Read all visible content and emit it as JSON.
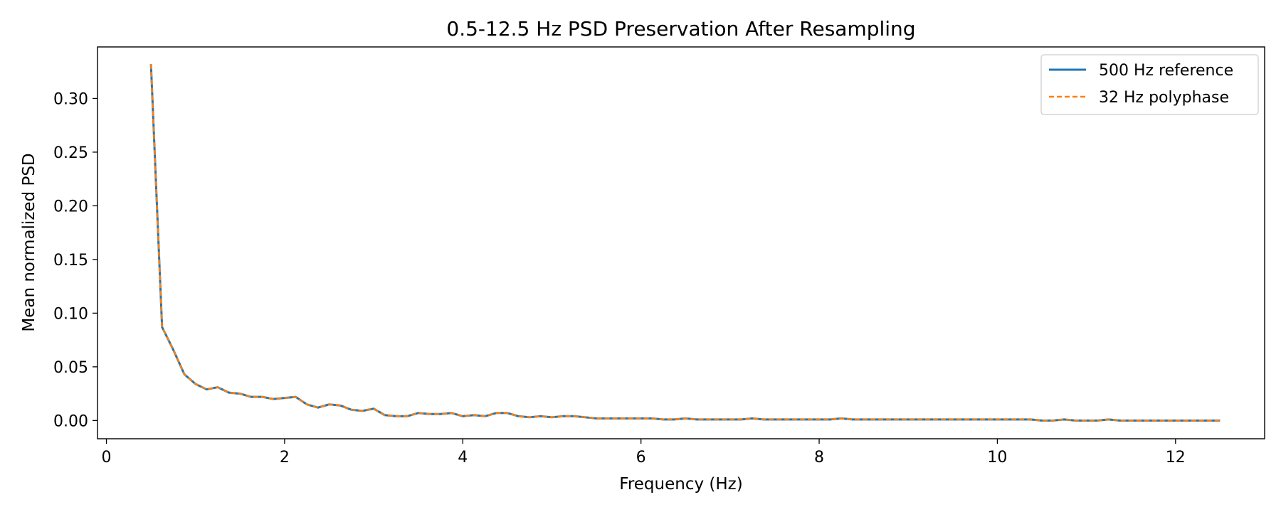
{
  "chart_data": {
    "type": "line",
    "title": "0.5-12.5 Hz PSD Preservation After Resampling",
    "xlabel": "Frequency (Hz)",
    "ylabel": "Mean normalized PSD",
    "xlim": [
      -0.1,
      13.0
    ],
    "ylim": [
      -0.017,
      0.348
    ],
    "xticks": [
      0,
      2,
      4,
      6,
      8,
      10,
      12
    ],
    "yticks": [
      0.0,
      0.05,
      0.1,
      0.15,
      0.2,
      0.25,
      0.3
    ],
    "xtick_labels": [
      "0",
      "2",
      "4",
      "6",
      "8",
      "10",
      "12"
    ],
    "ytick_labels": [
      "0.00",
      "0.05",
      "0.10",
      "0.15",
      "0.20",
      "0.25",
      "0.30"
    ],
    "grid": false,
    "legend_position": "top-right",
    "x": [
      0.5,
      0.625,
      0.75,
      0.875,
      1.0,
      1.125,
      1.25,
      1.375,
      1.5,
      1.625,
      1.75,
      1.875,
      2.0,
      2.125,
      2.25,
      2.375,
      2.5,
      2.625,
      2.75,
      2.875,
      3.0,
      3.125,
      3.25,
      3.375,
      3.5,
      3.625,
      3.75,
      3.875,
      4.0,
      4.125,
      4.25,
      4.375,
      4.5,
      4.625,
      4.75,
      4.875,
      5.0,
      5.125,
      5.25,
      5.375,
      5.5,
      5.625,
      5.75,
      5.875,
      6.0,
      6.125,
      6.25,
      6.375,
      6.5,
      6.625,
      6.75,
      6.875,
      7.0,
      7.125,
      7.25,
      7.375,
      7.5,
      7.625,
      7.75,
      7.875,
      8.0,
      8.125,
      8.25,
      8.375,
      8.5,
      8.625,
      8.75,
      8.875,
      9.0,
      9.125,
      9.25,
      9.375,
      9.5,
      9.625,
      9.75,
      9.875,
      10.0,
      10.125,
      10.25,
      10.375,
      10.5,
      10.625,
      10.75,
      10.875,
      11.0,
      11.125,
      11.25,
      11.375,
      11.5,
      11.625,
      11.75,
      11.875,
      12.0,
      12.125,
      12.25,
      12.375,
      12.5
    ],
    "series": [
      {
        "name": "500 Hz reference",
        "color": "#1f77b4",
        "style": "solid",
        "values": [
          0.332,
          0.087,
          0.066,
          0.043,
          0.034,
          0.029,
          0.031,
          0.026,
          0.025,
          0.022,
          0.022,
          0.02,
          0.021,
          0.022,
          0.015,
          0.012,
          0.015,
          0.014,
          0.01,
          0.009,
          0.011,
          0.005,
          0.004,
          0.004,
          0.007,
          0.006,
          0.006,
          0.007,
          0.004,
          0.005,
          0.004,
          0.007,
          0.007,
          0.004,
          0.003,
          0.004,
          0.003,
          0.004,
          0.004,
          0.003,
          0.002,
          0.002,
          0.002,
          0.002,
          0.002,
          0.002,
          0.001,
          0.001,
          0.002,
          0.001,
          0.001,
          0.001,
          0.001,
          0.001,
          0.002,
          0.001,
          0.001,
          0.001,
          0.001,
          0.001,
          0.001,
          0.001,
          0.002,
          0.001,
          0.001,
          0.001,
          0.001,
          0.001,
          0.001,
          0.001,
          0.001,
          0.001,
          0.001,
          0.001,
          0.001,
          0.001,
          0.001,
          0.001,
          0.001,
          0.001,
          0.0,
          0.0,
          0.001,
          0.0,
          0.0,
          0.0,
          0.001,
          0.0,
          0.0,
          0.0,
          0.0,
          0.0,
          0.0,
          0.0,
          0.0,
          0.0,
          0.0
        ]
      },
      {
        "name": "32 Hz polyphase",
        "color": "#ff7f0e",
        "style": "dashed",
        "values": [
          0.332,
          0.087,
          0.066,
          0.043,
          0.034,
          0.029,
          0.031,
          0.026,
          0.025,
          0.022,
          0.022,
          0.02,
          0.021,
          0.022,
          0.015,
          0.012,
          0.015,
          0.014,
          0.01,
          0.009,
          0.011,
          0.005,
          0.004,
          0.004,
          0.007,
          0.006,
          0.006,
          0.007,
          0.004,
          0.005,
          0.004,
          0.007,
          0.007,
          0.004,
          0.003,
          0.004,
          0.003,
          0.004,
          0.004,
          0.003,
          0.002,
          0.002,
          0.002,
          0.002,
          0.002,
          0.002,
          0.001,
          0.001,
          0.002,
          0.001,
          0.001,
          0.001,
          0.001,
          0.001,
          0.002,
          0.001,
          0.001,
          0.001,
          0.001,
          0.001,
          0.001,
          0.001,
          0.002,
          0.001,
          0.001,
          0.001,
          0.001,
          0.001,
          0.001,
          0.001,
          0.001,
          0.001,
          0.001,
          0.001,
          0.001,
          0.001,
          0.001,
          0.001,
          0.001,
          0.001,
          0.0,
          0.0,
          0.001,
          0.0,
          0.0,
          0.0,
          0.001,
          0.0,
          0.0,
          0.0,
          0.0,
          0.0,
          0.0,
          0.0,
          0.0,
          0.0,
          0.0
        ]
      }
    ]
  }
}
